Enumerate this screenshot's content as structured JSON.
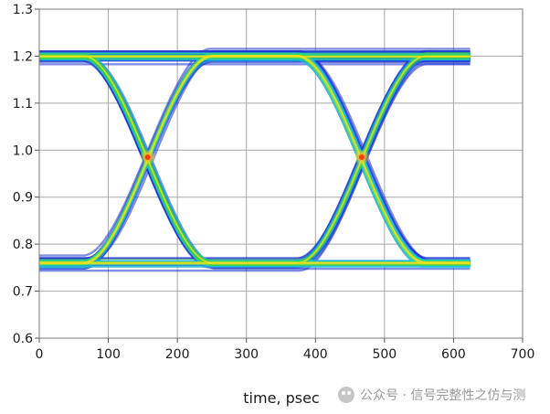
{
  "chart_data": {
    "type": "eye-diagram",
    "xlabel": "time, psec",
    "xlim": [
      0,
      700
    ],
    "ylim": [
      0.6,
      1.3
    ],
    "x_ticks": [
      0,
      100,
      200,
      300,
      400,
      500,
      600,
      700
    ],
    "y_ticks": [
      0.6,
      0.7,
      0.8,
      0.9,
      1.0,
      1.1,
      1.2,
      1.3
    ],
    "x_tick_labels": [
      "0",
      "100",
      "200",
      "300",
      "400",
      "500",
      "600",
      "700"
    ],
    "y_tick_labels": [
      "0.6",
      "0.7",
      "0.8",
      "0.9",
      "1.0",
      "1.1",
      "1.2",
      "1.3"
    ],
    "grid": true,
    "trace_x_range": [
      0,
      625
    ],
    "high_level": 1.2,
    "low_level": 0.76,
    "crossing_points": [
      {
        "time": 157,
        "value": 0.985
      },
      {
        "time": 467,
        "value": 0.985
      }
    ],
    "colors": {
      "density_low": "#1a2fd0",
      "density_mid": "#1ad0e0",
      "density_mid_high": "#40d840",
      "density_high": "#f0e020",
      "density_peak": "#ff3a1a",
      "grid": "#a8a8a8"
    }
  },
  "watermark": {
    "icon": "wechat-icon",
    "text": "公众号 · 信号完整性之仿与测"
  }
}
